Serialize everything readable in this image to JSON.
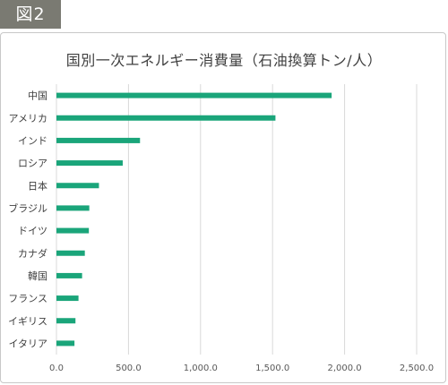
{
  "figure_label": "図2",
  "chart_data": {
    "type": "bar",
    "orientation": "horizontal",
    "title": "国別一次エネルギー消費量（石油換算トン/人）",
    "categories": [
      "中国",
      "アメリカ",
      "インド",
      "ロシア",
      "日本",
      "ブラジル",
      "ドイツ",
      "カナダ",
      "韓国",
      "フランス",
      "イギリス",
      "イタリア"
    ],
    "values": [
      1910,
      1520,
      580,
      460,
      295,
      228,
      225,
      197,
      178,
      153,
      132,
      125
    ],
    "xlim": [
      0,
      2500
    ],
    "xticks": [
      0,
      500,
      1000,
      1500,
      2000,
      2500
    ],
    "xtick_labels": [
      "0.0",
      "500.0",
      "1,000.0",
      "1,500.0",
      "2,000.0",
      "2,500.0"
    ],
    "grid": true,
    "bar_color": "#1aa57a",
    "grid_color": "#d9d9d9"
  }
}
